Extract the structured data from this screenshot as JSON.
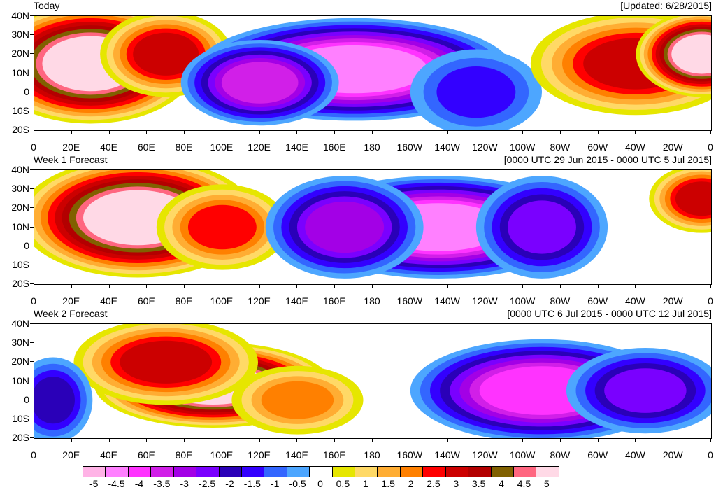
{
  "panels": [
    {
      "title_left": "Today",
      "title_right": "[Updated: 6/28/2015]",
      "blobs": [
        {
          "lon": 30,
          "lat": 15,
          "rx": 40,
          "ry": 35,
          "v": 5
        },
        {
          "lon": 70,
          "lat": 20,
          "rx": 25,
          "ry": 25,
          "v": 3
        },
        {
          "lon": 170,
          "lat": 12,
          "rx": 60,
          "ry": 30,
          "v": -4.5
        },
        {
          "lon": 120,
          "lat": 5,
          "rx": 30,
          "ry": 25,
          "v": -3.5
        },
        {
          "lon": 235,
          "lat": 0,
          "rx": 25,
          "ry": 25,
          "v": -1.5
        },
        {
          "lon": 320,
          "lat": 15,
          "rx": 40,
          "ry": 30,
          "v": 3
        },
        {
          "lon": 355,
          "lat": 20,
          "rx": 25,
          "ry": 25,
          "v": 5
        }
      ]
    },
    {
      "title_left": "Week 1 Forecast",
      "title_right": "[0000 UTC 29 Jun 2015 - 0000 UTC 5 Jul 2015]",
      "blobs": [
        {
          "lon": 55,
          "lat": 15,
          "rx": 45,
          "ry": 35,
          "v": 5
        },
        {
          "lon": 100,
          "lat": 10,
          "rx": 25,
          "ry": 25,
          "v": 2.5
        },
        {
          "lon": 215,
          "lat": 10,
          "rx": 55,
          "ry": 30,
          "v": -4.5
        },
        {
          "lon": 165,
          "lat": 10,
          "rx": 30,
          "ry": 30,
          "v": -3
        },
        {
          "lon": 270,
          "lat": 10,
          "rx": 25,
          "ry": 30,
          "v": -2.5
        },
        {
          "lon": 355,
          "lat": 25,
          "rx": 20,
          "ry": 20,
          "v": 3
        }
      ]
    },
    {
      "title_left": "Week 2 Forecast",
      "title_right": "[0000 UTC 6 Jul 2015 - 0000 UTC 12 Jul 2015]",
      "blobs": [
        {
          "lon": 95,
          "lat": 8,
          "rx": 45,
          "ry": 25,
          "v": 5
        },
        {
          "lon": 70,
          "lat": 20,
          "rx": 35,
          "ry": 25,
          "v": 3
        },
        {
          "lon": 140,
          "lat": 0,
          "rx": 25,
          "ry": 20,
          "v": 2
        },
        {
          "lon": 270,
          "lat": 5,
          "rx": 50,
          "ry": 30,
          "v": -4
        },
        {
          "lon": 325,
          "lat": 5,
          "rx": 30,
          "ry": 25,
          "v": -2.5
        },
        {
          "lon": 10,
          "lat": 0,
          "rx": 15,
          "ry": 25,
          "v": -2
        }
      ]
    }
  ],
  "axes": {
    "lat_labels": [
      "40N",
      "30N",
      "20N",
      "10N",
      "0",
      "10S",
      "20S"
    ],
    "lat_values": [
      40,
      30,
      20,
      10,
      0,
      -10,
      -20
    ],
    "lon_labels": [
      "0",
      "20E",
      "40E",
      "60E",
      "80E",
      "100E",
      "120E",
      "140E",
      "160E",
      "180",
      "160W",
      "140W",
      "120W",
      "100W",
      "80W",
      "60W",
      "40W",
      "20W",
      "0"
    ],
    "lon_values": [
      0,
      20,
      40,
      60,
      80,
      100,
      120,
      140,
      160,
      180,
      200,
      220,
      240,
      260,
      280,
      300,
      320,
      340,
      360
    ]
  },
  "colorbar": {
    "labels": [
      "-5",
      "-4.5",
      "-4",
      "-3.5",
      "-3",
      "-2.5",
      "-2",
      "-1.5",
      "-1",
      "-0.5",
      "0",
      "0.5",
      "1",
      "1.5",
      "2",
      "2.5",
      "3",
      "3.5",
      "4",
      "4.5",
      "5"
    ],
    "colors": [
      "#ffb3e6",
      "#ff80ff",
      "#ff33ff",
      "#d11fe8",
      "#a300e6",
      "#7a00ff",
      "#2a00b8",
      "#3300ff",
      "#3366ff",
      "#4da6ff",
      "#ffffff",
      "#e6e600",
      "#ffd966",
      "#ffad33",
      "#ff8000",
      "#ff0000",
      "#cc0000",
      "#b30000",
      "#806000",
      "#ff6680",
      "#ffd9e6"
    ],
    "level_values": [
      -5,
      -4.5,
      -4,
      -3.5,
      -3,
      -2.5,
      -2,
      -1.5,
      -1,
      -0.5,
      0,
      0.5,
      1,
      1.5,
      2,
      2.5,
      3,
      3.5,
      4,
      4.5,
      5
    ]
  }
}
